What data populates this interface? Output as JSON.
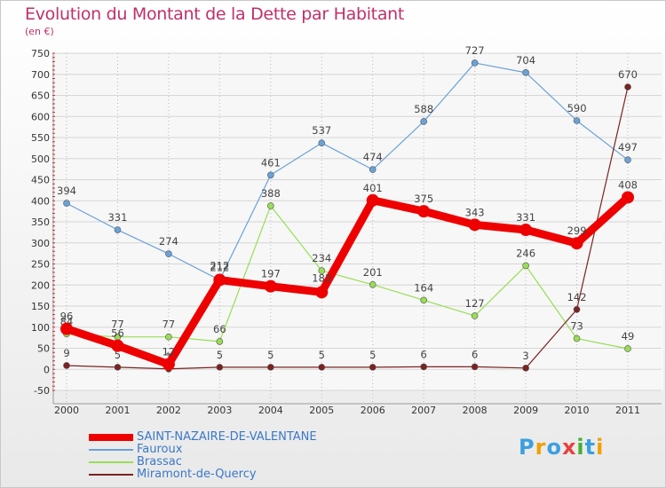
{
  "header": {
    "title": "Evolution du Montant de la Dette par Habitant",
    "unit": "(en €)"
  },
  "chart_data": {
    "type": "line",
    "title": "Evolution du Montant de la Dette par Habitant",
    "ylabel": "(en €)",
    "xlabel": "",
    "x": [
      "2000",
      "2001",
      "2002",
      "2003",
      "2004",
      "2005",
      "2006",
      "2007",
      "2008",
      "2009",
      "2010",
      "2011"
    ],
    "ylim": [
      -50,
      750
    ],
    "yticks": [
      -50,
      0,
      50,
      100,
      150,
      200,
      250,
      300,
      350,
      400,
      450,
      500,
      550,
      600,
      650,
      700,
      750
    ],
    "grid": true,
    "legend_position": "bottom-left",
    "series": [
      {
        "name": "SAINT-NAZAIRE-DE-VALENTANE",
        "color": "#ee0000",
        "values": [
          96,
          56,
          12,
          212,
          197,
          183,
          401,
          375,
          343,
          331,
          299,
          408
        ]
      },
      {
        "name": "Fauroux",
        "color": "#6aa2d8",
        "values": [
          394,
          331,
          274,
          212,
          461,
          537,
          474,
          588,
          727,
          704,
          590,
          497
        ]
      },
      {
        "name": "Brassac",
        "color": "#99dd55",
        "values": [
          84,
          77,
          77,
          66,
          388,
          234,
          201,
          164,
          127,
          246,
          73,
          49
        ]
      },
      {
        "name": "Miramont-de-Quercy",
        "color": "#7a2222",
        "values": [
          9,
          5,
          1,
          5,
          5,
          5,
          5,
          6,
          6,
          3,
          142,
          670
        ]
      }
    ]
  },
  "legend": {
    "items": [
      {
        "label": "SAINT-NAZAIRE-DE-VALENTANE",
        "color": "#ee0000"
      },
      {
        "label": "Fauroux",
        "color": "#6aa2d8"
      },
      {
        "label": "Brassac",
        "color": "#99dd55"
      },
      {
        "label": "Miramont-de-Quercy",
        "color": "#7a2222"
      }
    ]
  },
  "logo": {
    "letters": [
      "P",
      "r",
      "o",
      "x",
      "i",
      "t",
      "i"
    ],
    "colors": [
      "#3aa0e0",
      "#f0a000",
      "#3aa0e0",
      "#e84040",
      "#44b030",
      "#3aa0e0",
      "#f0a000"
    ]
  }
}
